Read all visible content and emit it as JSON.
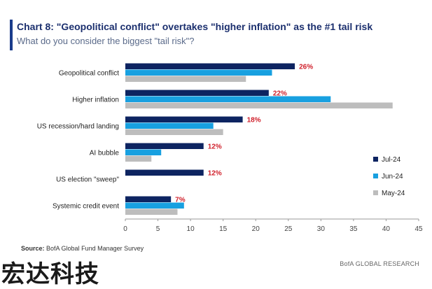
{
  "header": {
    "title": "Chart 8: \"Geopolitical conflict\" overtakes \"higher inflation\" as the #1 tail risk",
    "subtitle": "What do you consider the biggest \"tail risk\"?"
  },
  "footer": {
    "source_label": "Source:",
    "source_text": "BofA Global Fund Manager Survey",
    "brand": "BofA GLOBAL RESEARCH",
    "watermark": "宏达科技"
  },
  "colors": {
    "title_bar": "#1a3c8c",
    "jul": "#0d2461",
    "jun": "#18a0e0",
    "may": "#bdbdbd",
    "data_label": "#d0202b"
  },
  "chart_data": {
    "type": "bar",
    "orientation": "horizontal",
    "categories": [
      "Geopolitical conflict",
      "Higher inflation",
      "US recession/hard landing",
      "AI bubble",
      "US election \"sweep\"",
      "Systemic credit event"
    ],
    "series": [
      {
        "name": "Jul-24",
        "values": [
          26,
          22,
          18,
          12,
          12,
          7
        ],
        "color": "#0d2461"
      },
      {
        "name": "Jun-24",
        "values": [
          22.5,
          31.5,
          13.5,
          5.5,
          null,
          9
        ],
        "color": "#18a0e0"
      },
      {
        "name": "May-24",
        "values": [
          18.5,
          41,
          15,
          4,
          null,
          8
        ],
        "color": "#bdbdbd"
      }
    ],
    "data_labels": [
      "26%",
      "22%",
      "18%",
      "12%",
      "12%",
      "7%"
    ],
    "x_ticks": [
      0,
      5,
      10,
      15,
      20,
      25,
      30,
      35,
      40,
      45
    ],
    "xlim": [
      0,
      45
    ],
    "xlabel": "",
    "ylabel": "",
    "grid": false,
    "legend_position": "right"
  }
}
